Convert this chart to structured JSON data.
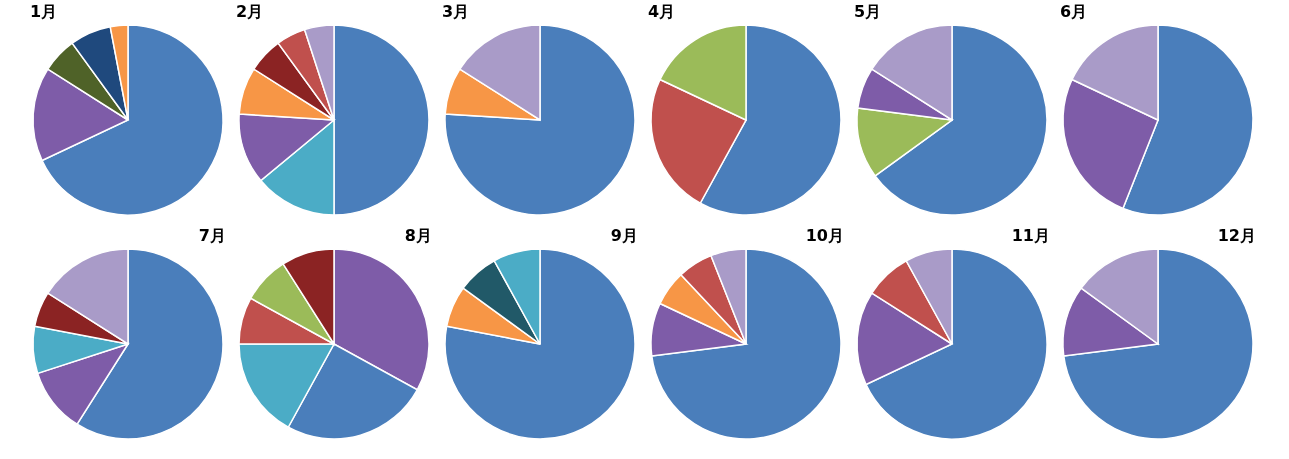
{
  "chart_data": [
    {
      "type": "pie",
      "title": "1月",
      "categories": [
        null,
        null,
        null,
        null,
        null
      ],
      "values": [
        68,
        16,
        6,
        7,
        3
      ],
      "colors": [
        "#4a7ebb",
        "#7e5ca8",
        "#4f6228",
        "#1f497d",
        "#f79646"
      ]
    },
    {
      "type": "pie",
      "title": "2月",
      "categories": [
        null,
        null,
        null,
        null,
        null,
        null,
        null
      ],
      "values": [
        50,
        14,
        12,
        8,
        6,
        5,
        5
      ],
      "colors": [
        "#4a7ebb",
        "#4bacc6",
        "#7e5ca8",
        "#f79646",
        "#8b2323",
        "#c0504d",
        "#a99bc8"
      ]
    },
    {
      "type": "pie",
      "title": "3月",
      "categories": [
        null,
        null,
        null
      ],
      "values": [
        76,
        8,
        16
      ],
      "colors": [
        "#4a7ebb",
        "#f79646",
        "#a99bc8"
      ]
    },
    {
      "type": "pie",
      "title": "4月",
      "categories": [
        null,
        null,
        null
      ],
      "values": [
        58,
        24,
        18
      ],
      "colors": [
        "#4a7ebb",
        "#c0504d",
        "#9bbb59"
      ]
    },
    {
      "type": "pie",
      "title": "5月",
      "categories": [
        null,
        null,
        null,
        null
      ],
      "values": [
        65,
        12,
        7,
        16
      ],
      "colors": [
        "#4a7ebb",
        "#9bbb59",
        "#7e5ca8",
        "#a99bc8"
      ]
    },
    {
      "type": "pie",
      "title": "6月",
      "categories": [
        null,
        null,
        null
      ],
      "values": [
        56,
        26,
        18
      ],
      "colors": [
        "#4a7ebb",
        "#7e5ca8",
        "#a99bc8"
      ]
    },
    {
      "type": "pie",
      "title": "7月",
      "categories": [
        null,
        null,
        null,
        null,
        null
      ],
      "values": [
        59,
        11,
        8,
        6,
        16
      ],
      "colors": [
        "#4a7ebb",
        "#7e5ca8",
        "#4bacc6",
        "#8b2323",
        "#a99bc8"
      ]
    },
    {
      "type": "pie",
      "title": "8月",
      "categories": [
        null,
        null,
        null,
        null,
        null,
        null
      ],
      "values": [
        33,
        25,
        17,
        8,
        8,
        9
      ],
      "colors": [
        "#7e5ca8",
        "#4a7ebb",
        "#4bacc6",
        "#c0504d",
        "#9bbb59",
        "#8b2323"
      ]
    },
    {
      "type": "pie",
      "title": "9月",
      "categories": [
        null,
        null,
        null,
        null
      ],
      "values": [
        78,
        7,
        7,
        8
      ],
      "colors": [
        "#4a7ebb",
        "#f79646",
        "#215968",
        "#4bacc6"
      ]
    },
    {
      "type": "pie",
      "title": "10月",
      "categories": [
        null,
        null,
        null,
        null,
        null
      ],
      "values": [
        73,
        9,
        6,
        6,
        6
      ],
      "colors": [
        "#4a7ebb",
        "#7e5ca8",
        "#f79646",
        "#c0504d",
        "#a99bc8"
      ]
    },
    {
      "type": "pie",
      "title": "11月",
      "categories": [
        null,
        null,
        null,
        null
      ],
      "values": [
        68,
        16,
        8,
        8
      ],
      "colors": [
        "#4a7ebb",
        "#7e5ca8",
        "#c0504d",
        "#a99bc8"
      ]
    },
    {
      "type": "pie",
      "title": "12月",
      "categories": [
        null,
        null,
        null
      ],
      "values": [
        73,
        12,
        15
      ],
      "colors": [
        "#4a7ebb",
        "#7e5ca8",
        "#a99bc8"
      ]
    }
  ]
}
